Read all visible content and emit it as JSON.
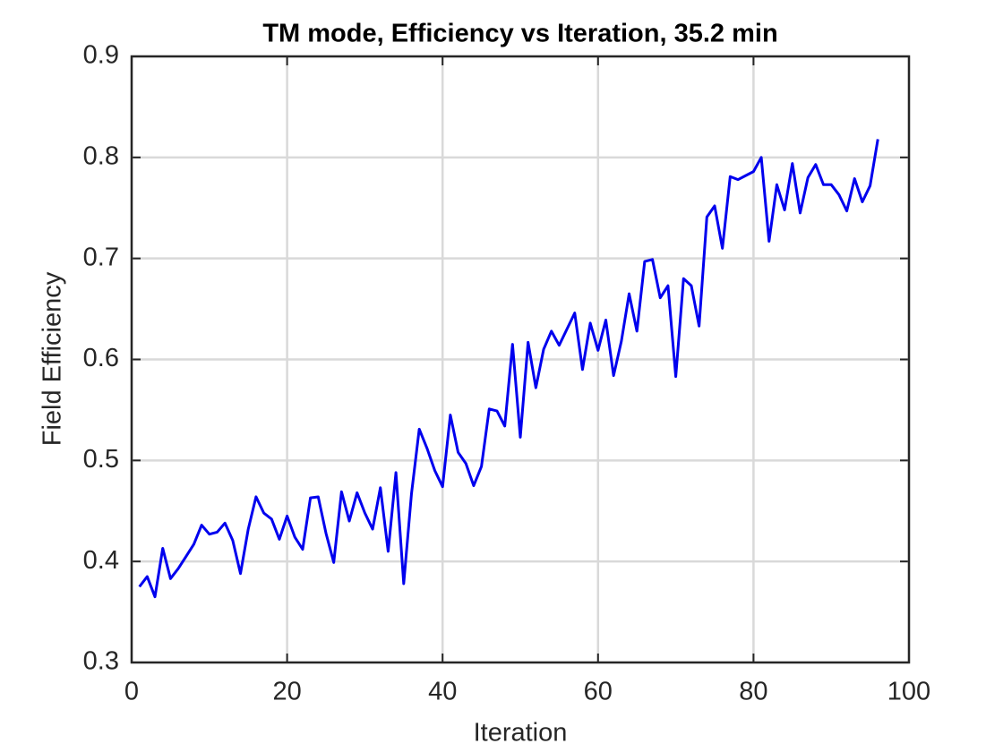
{
  "chart_data": {
    "type": "line",
    "title": "TM mode, Efficiency vs Iteration, 35.2 min",
    "x_label": "Iteration",
    "y_label": "Field Efficiency",
    "x": [
      1,
      2,
      3,
      4,
      5,
      6,
      7,
      8,
      9,
      10,
      11,
      12,
      13,
      14,
      15,
      16,
      17,
      18,
      19,
      20,
      21,
      22,
      23,
      24,
      25,
      26,
      27,
      28,
      29,
      30,
      31,
      32,
      33,
      34,
      35,
      36,
      37,
      38,
      39,
      40,
      41,
      42,
      43,
      44,
      45,
      46,
      47,
      48,
      49,
      50,
      51,
      52,
      53,
      54,
      55,
      56,
      57,
      58,
      59,
      60,
      61,
      62,
      63,
      64,
      65,
      66,
      67,
      68,
      69,
      70,
      71,
      72,
      73,
      74,
      75,
      76,
      77,
      78,
      79,
      80,
      81,
      82,
      83,
      84,
      85,
      86,
      87,
      88,
      89,
      90,
      91,
      92,
      93,
      94,
      95,
      96
    ],
    "series": [
      {
        "name": "Efficiency",
        "color": "#0000ee",
        "values": [
          0.375,
          0.385,
          0.365,
          0.413,
          0.383,
          0.393,
          0.405,
          0.417,
          0.436,
          0.427,
          0.429,
          0.438,
          0.421,
          0.388,
          0.432,
          0.464,
          0.448,
          0.442,
          0.422,
          0.445,
          0.424,
          0.412,
          0.463,
          0.464,
          0.428,
          0.399,
          0.469,
          0.44,
          0.468,
          0.448,
          0.432,
          0.473,
          0.41,
          0.488,
          0.378,
          0.467,
          0.531,
          0.512,
          0.49,
          0.474,
          0.545,
          0.508,
          0.497,
          0.475,
          0.494,
          0.551,
          0.549,
          0.534,
          0.615,
          0.523,
          0.617,
          0.572,
          0.61,
          0.628,
          0.614,
          0.63,
          0.646,
          0.59,
          0.636,
          0.609,
          0.639,
          0.584,
          0.618,
          0.665,
          0.628,
          0.697,
          0.699,
          0.661,
          0.673,
          0.583,
          0.68,
          0.673,
          0.633,
          0.741,
          0.752,
          0.71,
          0.781,
          0.778,
          0.782,
          0.786,
          0.8,
          0.717,
          0.773,
          0.748,
          0.794,
          0.745,
          0.78,
          0.793,
          0.773,
          0.773,
          0.763,
          0.747,
          0.779,
          0.756,
          0.772,
          0.818
        ]
      }
    ],
    "xlim": [
      0,
      100
    ],
    "xticks": [
      0,
      20,
      40,
      60,
      80,
      100
    ],
    "ylim": [
      0.3,
      0.9
    ],
    "yticks": [
      0.3,
      0.4,
      0.5,
      0.6,
      0.7,
      0.8,
      0.9
    ],
    "grid": true
  }
}
